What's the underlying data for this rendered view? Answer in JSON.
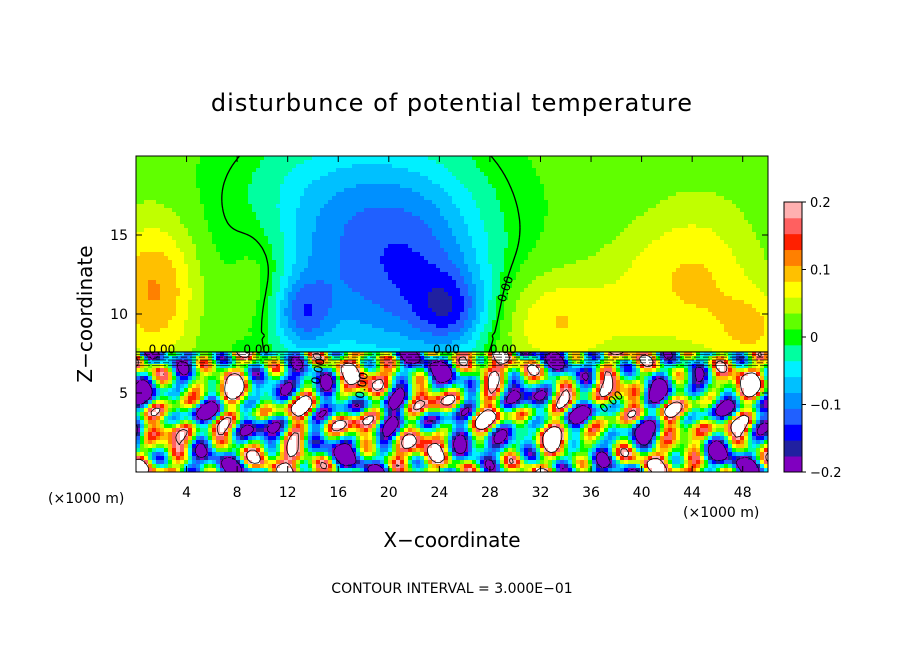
{
  "chart_data": {
    "type": "heatmap",
    "title": "disturbunce of potential temperature",
    "xlabel": "X−coordinate",
    "ylabel": "Z−coordinate",
    "x_unit_left": "(×1000 m)",
    "x_unit_right": "(×1000 m)",
    "xlim": [
      0,
      50
    ],
    "ylim": [
      0,
      20
    ],
    "x_ticks": [
      4,
      8,
      12,
      16,
      20,
      24,
      28,
      32,
      36,
      40,
      44,
      48
    ],
    "y_ticks": [
      5,
      10,
      15
    ],
    "colorbar": {
      "min": -0.2,
      "max": 0.2,
      "labels": [
        "0.2",
        "0.1",
        "0",
        "−0.1",
        "−0.2"
      ],
      "label_values": [
        0.2,
        0.1,
        0,
        -0.1,
        -0.2
      ],
      "levels": [
        -0.2,
        -0.175,
        -0.15,
        -0.125,
        -0.1,
        -0.075,
        -0.05,
        -0.025,
        0,
        0.025,
        0.05,
        0.075,
        0.1,
        0.125,
        0.15,
        0.175,
        0.2
      ],
      "colors": [
        "#8000c0",
        "#2020a0",
        "#0000ff",
        "#2060ff",
        "#0090ff",
        "#00c0ff",
        "#00f0ff",
        "#00ffa0",
        "#00ff00",
        "#60ff00",
        "#c0ff00",
        "#ffff00",
        "#ffc000",
        "#ff8000",
        "#ff2000",
        "#ff6060",
        "#ffb0b0"
      ]
    },
    "contour_labels": [
      "0.00",
      "0.00",
      "0.00",
      "0.00",
      "0.00",
      "0.00",
      "0.00",
      "0.00"
    ],
    "contour_interval_text": "CONTOUR INTERVAL = 3.000E−01",
    "grid": false,
    "legend": "right colorbar"
  }
}
